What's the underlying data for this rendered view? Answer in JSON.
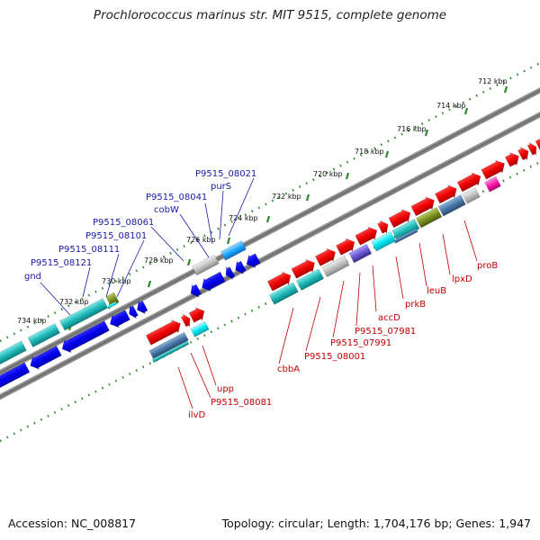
{
  "title": "Prochlorococcus marinus str. MIT 9515, complete genome",
  "footer": {
    "accession": "Accession: NC_008817",
    "summary": "Topology: circular; Length: 1,704,176 bp; Genes: 1,947"
  },
  "colors": {
    "reverse_strand_label": "#1a1aa8",
    "forward_strand_label": "#c00000",
    "axis": "#777777",
    "tick": "#2a8a2a"
  },
  "ticks": [
    "712 kbp",
    "714 kbp",
    "716 kbp",
    "718 kbp",
    "720 kbp",
    "722 kbp",
    "724 kbp",
    "726 kbp",
    "728 kbp",
    "730 kbp",
    "732 kbp",
    "734 kbp"
  ],
  "labels_reverse": [
    "P9515_08021",
    "purS",
    "P9515_08041",
    "cobW",
    "P9515_08061",
    "P9515_08101",
    "P9515_08111",
    "P9515_08121",
    "gnd"
  ],
  "labels_forward": [
    "proB",
    "lpxD",
    "leuB",
    "prkB",
    "accD",
    "P9515_07981",
    "P9515_07991",
    "P9515_08001",
    "cbbA",
    "upp",
    "P9515_08081",
    "ilvD"
  ]
}
